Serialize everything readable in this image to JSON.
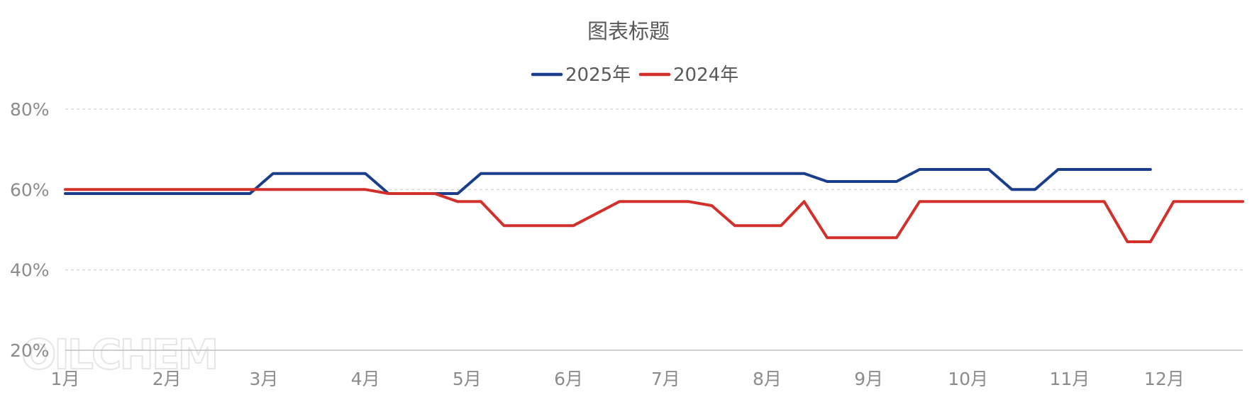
{
  "watermark": "OILCHEM",
  "chart_data": {
    "type": "line",
    "title": "图表标题",
    "legend_position": "top-center",
    "grid": true,
    "y_axis": {
      "min": 20,
      "max": 80,
      "ticks": [
        80,
        60,
        40,
        20
      ],
      "tick_labels": [
        "80%",
        "60%",
        "40%",
        "20%"
      ]
    },
    "x_axis": {
      "tick_labels": [
        "1月",
        "2月",
        "3月",
        "4月",
        "5月",
        "6月",
        "7月",
        "8月",
        "9月",
        "10月",
        "11月",
        "12月"
      ],
      "tick_positions": [
        0,
        4.4,
        8.6,
        13,
        17.4,
        21.8,
        26,
        30.4,
        34.8,
        39.1,
        43.5,
        47.6
      ],
      "range": [
        0,
        51
      ]
    },
    "series": [
      {
        "name": "2025年",
        "color": "#1a3e8c",
        "x": [
          0,
          8,
          9,
          13,
          14,
          17,
          18,
          32,
          33,
          36,
          37,
          40,
          41,
          42,
          43,
          47
        ],
        "values": [
          59,
          59,
          64,
          64,
          59,
          59,
          64,
          64,
          62,
          62,
          65,
          65,
          60,
          60,
          65,
          65
        ]
      },
      {
        "name": "2024年",
        "color": "#d2312b",
        "x": [
          0,
          13,
          14,
          16,
          17,
          18,
          19,
          22,
          24,
          27,
          28,
          29,
          31,
          32,
          33,
          36,
          37,
          45,
          46,
          47,
          48,
          51
        ],
        "values": [
          60,
          60,
          59,
          59,
          57,
          57,
          51,
          51,
          57,
          57,
          56,
          51,
          51,
          57,
          48,
          48,
          57,
          57,
          47,
          47,
          57,
          57
        ]
      }
    ]
  }
}
